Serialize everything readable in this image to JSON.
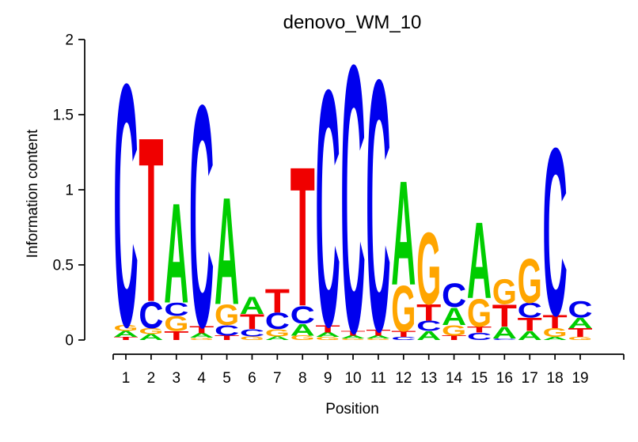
{
  "title": "denovo_WM_10",
  "chart_data": {
    "type": "sequence-logo",
    "title": "denovo_WM_10",
    "xlabel": "Position",
    "ylabel": "Information content",
    "ylim": [
      0,
      2
    ],
    "yticks": [
      0,
      0.5,
      1,
      1.5,
      2
    ],
    "ytick_labels": [
      "0",
      "0.5",
      "1",
      "1.5",
      "2"
    ],
    "xtick_labels": [
      "1",
      "2",
      "3",
      "4",
      "5",
      "6",
      "7",
      "8",
      "9",
      "10",
      "11",
      "12",
      "13",
      "14",
      "15",
      "16",
      "17",
      "18",
      "19"
    ],
    "grid": false,
    "legend": "none",
    "axis_color": "#000000",
    "letter_colors": {
      "A": "#00CD00",
      "C": "#0000EE",
      "G": "#FFA500",
      "T": "#F00000"
    },
    "units": "bits",
    "stacks": [
      {
        "position": 1,
        "letters": [
          [
            "C",
            1.65
          ],
          [
            "G",
            0.04
          ],
          [
            "A",
            0.04
          ],
          [
            "T",
            0.02
          ]
        ]
      },
      {
        "position": 2,
        "letters": [
          [
            "T",
            1.12
          ],
          [
            "C",
            0.18
          ],
          [
            "G",
            0.04
          ],
          [
            "A",
            0.04
          ]
        ]
      },
      {
        "position": 3,
        "letters": [
          [
            "A",
            0.68
          ],
          [
            "C",
            0.09
          ],
          [
            "G",
            0.1
          ],
          [
            "T",
            0.06
          ]
        ]
      },
      {
        "position": 4,
        "letters": [
          [
            "C",
            1.51
          ],
          [
            "T",
            0.05
          ],
          [
            "A",
            0.03
          ],
          [
            "G",
            0.015
          ]
        ]
      },
      {
        "position": 5,
        "letters": [
          [
            "A",
            0.73
          ],
          [
            "G",
            0.14
          ],
          [
            "C",
            0.07
          ],
          [
            "T",
            0.03
          ]
        ]
      },
      {
        "position": 6,
        "letters": [
          [
            "A",
            0.12
          ],
          [
            "T",
            0.1
          ],
          [
            "C",
            0.05
          ],
          [
            "G",
            0.025
          ]
        ]
      },
      {
        "position": 7,
        "letters": [
          [
            "T",
            0.16
          ],
          [
            "C",
            0.11
          ],
          [
            "G",
            0.05
          ],
          [
            "A",
            0.025
          ]
        ]
      },
      {
        "position": 8,
        "letters": [
          [
            "T",
            0.95
          ],
          [
            "C",
            0.12
          ],
          [
            "A",
            0.08
          ],
          [
            "G",
            0.03
          ]
        ]
      },
      {
        "position": 9,
        "letters": [
          [
            "C",
            1.61
          ],
          [
            "T",
            0.05
          ],
          [
            "A",
            0.03
          ],
          [
            "G",
            0.02
          ]
        ]
      },
      {
        "position": 10,
        "letters": [
          [
            "C",
            1.82
          ],
          [
            "T",
            0.03
          ],
          [
            "A",
            0.02
          ],
          [
            "G",
            0.01
          ]
        ]
      },
      {
        "position": 11,
        "letters": [
          [
            "C",
            1.71
          ],
          [
            "T",
            0.04
          ],
          [
            "A",
            0.02
          ],
          [
            "G",
            0.01
          ]
        ]
      },
      {
        "position": 12,
        "letters": [
          [
            "A",
            0.71
          ],
          [
            "G",
            0.31
          ],
          [
            "T",
            0.04
          ],
          [
            "C",
            0.02
          ]
        ]
      },
      {
        "position": 13,
        "letters": [
          [
            "G",
            0.49
          ],
          [
            "T",
            0.11
          ],
          [
            "C",
            0.07
          ],
          [
            "A",
            0.06
          ]
        ]
      },
      {
        "position": 14,
        "letters": [
          [
            "C",
            0.16
          ],
          [
            "A",
            0.12
          ],
          [
            "G",
            0.07
          ],
          [
            "T",
            0.03
          ]
        ]
      },
      {
        "position": 15,
        "letters": [
          [
            "A",
            0.52
          ],
          [
            "G",
            0.19
          ],
          [
            "T",
            0.04
          ],
          [
            "C",
            0.05
          ]
        ]
      },
      {
        "position": 16,
        "letters": [
          [
            "G",
            0.17
          ],
          [
            "T",
            0.15
          ],
          [
            "A",
            0.08
          ],
          [
            "C",
            0.01
          ]
        ]
      },
      {
        "position": 17,
        "letters": [
          [
            "G",
            0.3
          ],
          [
            "C",
            0.1
          ],
          [
            "T",
            0.09
          ],
          [
            "A",
            0.06
          ]
        ]
      },
      {
        "position": 18,
        "letters": [
          [
            "C",
            1.14
          ],
          [
            "T",
            0.09
          ],
          [
            "G",
            0.06
          ],
          [
            "A",
            0.02
          ]
        ]
      },
      {
        "position": 19,
        "letters": [
          [
            "C",
            0.11
          ],
          [
            "A",
            0.07
          ],
          [
            "T",
            0.06
          ],
          [
            "G",
            0.02
          ]
        ]
      }
    ]
  }
}
